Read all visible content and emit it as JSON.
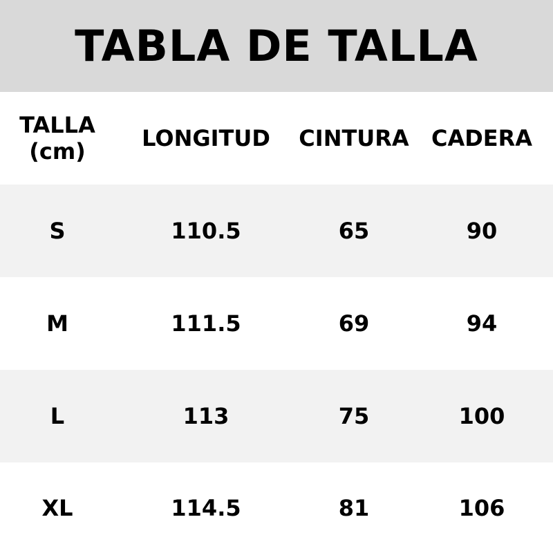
{
  "title": "TABLA DE TALLA",
  "headers": {
    "size_line1": "TALLA",
    "size_line2": "(cm)",
    "length": "LONGITUD",
    "waist": "CINTURA",
    "hip": "CADERA"
  },
  "rows": [
    {
      "size": "S",
      "length": "110.5",
      "waist": "65",
      "hip": "90"
    },
    {
      "size": "M",
      "length": "111.5",
      "waist": "69",
      "hip": "94"
    },
    {
      "size": "L",
      "length": "113",
      "waist": "75",
      "hip": "100"
    },
    {
      "size": "XL",
      "length": "114.5",
      "waist": "81",
      "hip": "106"
    }
  ],
  "colors": {
    "title_band": "#d9d9d9",
    "row_stripe": "#f2f2f2",
    "text": "#000000"
  }
}
